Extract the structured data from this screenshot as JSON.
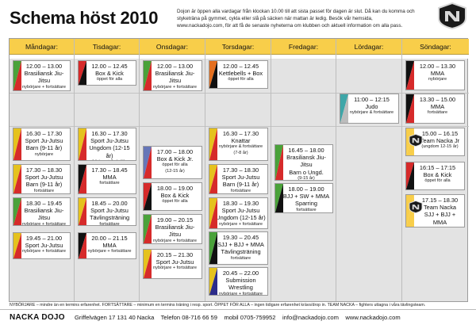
{
  "title": "Schema höst 2010",
  "intro": "Dojon är öppen alla vardagar från klockan 10.00 till att sista passet för dagen är slut. Då kan du komma och styketräna på gymmet, cykla eller slå på säcken när mattan är ledig. Besök vår hemsida, www.nackadojo.com, för att få de senaste nyheterna om klubben och aktuell information om alla pass.",
  "logo": {
    "name": "nacka-dojo-logo",
    "colors": {
      "dark": "#1a1a1a",
      "light": "#d8d8d8"
    }
  },
  "colors": {
    "header": "#f8ce4a",
    "bjj": "#4aa23a",
    "boxing": "#d62a2a",
    "kettlebells": "#e46f1f",
    "judo": "#3fa6a8",
    "juniors": "#6676b8",
    "ju-jutsu": "#e5c21e",
    "mma": "#111111",
    "open-mat": "#bcbcbc",
    "wrestling": "#2c2c8a"
  },
  "days": [
    {
      "name": "Måndagar:",
      "sessions": [
        {
          "time": "12.00 – 13.00",
          "lines": [
            "Brasiliansk Jiu-Jitsu"
          ],
          "notes": [
            "nybörjare + fortsättare"
          ],
          "colors": [
            "#4aa23a",
            "#d62a2a"
          ]
        },
        {
          "time": "16.30 – 17.30",
          "lines": [
            "Sport Ju-Jutsu",
            "Barn (9-11 år)"
          ],
          "notes": [
            "nybörjare"
          ],
          "colors": [
            "#e5c21e",
            "#d62a2a"
          ]
        },
        {
          "time": "17.30 – 18.30",
          "lines": [
            "Sport Ju-Jutsu",
            "Barn (9-11 år)"
          ],
          "notes": [
            "fortsättare"
          ],
          "colors": [
            "#e5c21e",
            "#d62a2a"
          ]
        },
        {
          "time": "18.30 – 19.45",
          "lines": [
            "Brasiliansk Jiu-Jitsu"
          ],
          "notes": [
            "nybörjare + fortsättare"
          ],
          "colors": [
            "#4aa23a",
            "#d62a2a"
          ]
        },
        {
          "time": "19.45 – 21.00",
          "lines": [
            "Sport Ju-Jutsu"
          ],
          "notes": [
            "nybörjare + fortsättare"
          ],
          "colors": [
            "#e5c21e",
            "#d62a2a"
          ]
        }
      ]
    },
    {
      "name": "Tisdagar:",
      "sessions": [
        {
          "time": "12.00 – 12.45",
          "lines": [
            "Box & Kick"
          ],
          "notes": [
            "öppet för alla"
          ],
          "colors": [
            "#d62a2a",
            "#111111"
          ]
        },
        {
          "time": "16.30 – 17.30",
          "lines": [
            "Sport Ju-Jutsu",
            "Ungdom (12-15 år)"
          ],
          "notes": [
            "nybörjare + fortsättare"
          ],
          "colors": [
            "#e5c21e",
            "#d62a2a"
          ]
        },
        {
          "time": "17.30 – 18.45",
          "lines": [
            "MMA"
          ],
          "notes": [
            "fortsättare"
          ],
          "colors": [
            "#111111",
            "#d62a2a"
          ]
        },
        {
          "time": "18.45 – 20.00",
          "lines": [
            "Sport Ju-Jutsu",
            "Tävlingsträning"
          ],
          "notes": [
            "fortsättare"
          ],
          "colors": [
            "#e5c21e",
            "#d62a2a"
          ]
        },
        {
          "time": "20.00 – 21.15",
          "lines": [
            "MMA"
          ],
          "notes": [
            "nybörjare + fortsättare"
          ],
          "colors": [
            "#111111",
            "#d62a2a"
          ]
        }
      ]
    },
    {
      "name": "Onsdagar:",
      "sessions": [
        {
          "time": "12.00 – 13.00",
          "lines": [
            "Brasiliansk Jiu-Jitsu"
          ],
          "notes": [
            "nybörjare + fortsättare"
          ],
          "colors": [
            "#4aa23a",
            "#d62a2a"
          ]
        },
        {
          "time": "17.00 – 18.00",
          "lines": [
            "Box & Kick Jr."
          ],
          "notes": [
            "öppet för alla",
            "(12-15 år)"
          ],
          "colors": [
            "#6676b8",
            "#d62a2a"
          ]
        },
        {
          "time": "18.00 – 19.00",
          "lines": [
            "Box & Kick"
          ],
          "notes": [
            "öppet för alla"
          ],
          "colors": [
            "#d62a2a",
            "#111111"
          ]
        },
        {
          "time": "19.00 – 20.15",
          "lines": [
            "Brasiliansk Jiu-Jitsu"
          ],
          "notes": [
            "nybörjare + fortsättare"
          ],
          "colors": [
            "#4aa23a",
            "#d62a2a"
          ]
        },
        {
          "time": "20.15 – 21.30",
          "lines": [
            "Sport Ju-Jutsu"
          ],
          "notes": [
            "nybörjare + fortsättare"
          ],
          "colors": [
            "#e5c21e",
            "#d62a2a"
          ]
        }
      ]
    },
    {
      "name": "Torsdagar:",
      "sessions": [
        {
          "time": "12.00 – 12.45",
          "lines": [
            "Kettlebells + Box"
          ],
          "notes": [
            "öppet för alla"
          ],
          "colors": [
            "#e46f1f",
            "#111111"
          ]
        },
        {
          "time": "16.30 – 17.30",
          "lines": [
            "Knattar"
          ],
          "notes": [
            "nybörjare & fortsättare",
            "(7-8 år)"
          ],
          "colors": [
            "#e5c21e",
            "#d62a2a"
          ]
        },
        {
          "time": "17.30 – 18.30",
          "lines": [
            "Sport Ju-Jutsu",
            "Barn (9-11 år)"
          ],
          "notes": [
            "fortsättare"
          ],
          "colors": [
            "#e5c21e",
            "#d62a2a"
          ]
        },
        {
          "time": "18.30 – 19.30",
          "lines": [
            "Sport Ju-Jutsu",
            "Ungdom (12-15 år)"
          ],
          "notes": [
            "nybörjare + fortsättare"
          ],
          "colors": [
            "#e5c21e",
            "#d62a2a"
          ]
        },
        {
          "time": "19.30 – 20.45",
          "lines": [
            "SJJ + BJJ + MMA",
            "Tävlingsträning"
          ],
          "notes": [
            "fortsättare"
          ],
          "colors": [
            "#4aa23a",
            "#111111"
          ]
        },
        {
          "time": "20.45 – 22.00",
          "lines": [
            "Submission Wrestling"
          ],
          "notes": [
            "nybörjare + fortsättare"
          ],
          "colors": [
            "#e5c21e",
            "#2c2c8a"
          ]
        }
      ]
    },
    {
      "name": "Fredagar:",
      "sessions": [
        {
          "time": "16.45 – 18.00",
          "lines": [
            "Brasiliansk Jiu-Jitsu",
            "Barn o Ungd."
          ],
          "notes": [
            "(9-15 år)",
            "nybörjare + fortsättare"
          ],
          "colors": [
            "#4aa23a",
            "#d62a2a"
          ]
        },
        {
          "time": "18.00 – 19.00",
          "lines": [
            "BJJ + SW + MMA",
            "Sparring"
          ],
          "notes": [
            "fortsättare"
          ],
          "colors": [
            "#4aa23a",
            "#111111"
          ]
        }
      ]
    },
    {
      "name": "Lördagar:",
      "sessions": [
        {
          "time": "11:00 – 12:15",
          "lines": [
            "Judo"
          ],
          "notes": [
            "nybörjare & fortsättare"
          ],
          "colors": [
            "#3fa6a8",
            "#bcbcbc"
          ]
        }
      ]
    },
    {
      "name": "Söndagar:",
      "sessions": [
        {
          "time": "12.00 – 13.30",
          "lines": [
            "MMA"
          ],
          "notes": [
            "nybörjare"
          ],
          "colors": [
            "#111111",
            "#d62a2a"
          ]
        },
        {
          "time": "13.30 – 15.00",
          "lines": [
            "MMA"
          ],
          "notes": [
            "fortsättare"
          ],
          "colors": [
            "#111111",
            "#d62a2a"
          ]
        },
        {
          "time": "15.00 – 16.15",
          "lines": [
            "Team Nacka Jr"
          ],
          "notes": [
            "(ungdom 12-15 år)"
          ],
          "colors": [
            "#f8ce4a",
            "#f8ce4a"
          ],
          "team": true
        },
        {
          "time": "16:15 – 17:15",
          "lines": [
            "Box & Kick"
          ],
          "notes": [
            "öppet för alla"
          ],
          "colors": [
            "#d62a2a",
            "#111111"
          ]
        },
        {
          "time": "17.15 – 18.30",
          "lines": [
            "Team Nacka",
            "SJJ + BJJ + MMA"
          ],
          "notes": [],
          "colors": [
            "#f8ce4a",
            "#f8ce4a"
          ],
          "team": true
        }
      ]
    }
  ],
  "footnote": "NYBÖRJARE – mindre än en termins erfarenhet.   FORTSÄTTARE – minimum en termins träning i resp. sport.   ÖPPET FÖR ALLA – ingen tidigare erfarenhet krävs/drop in.  TEAM NACKA – fighters uttagna i våra tävlingsteam.",
  "footer": {
    "brand": "NACKA DOJO",
    "address": "Griffelvägen 17   131 40 Nacka",
    "phone": "Telefon 08-716 66 59",
    "mobile": "mobil  0705-759952",
    "email": "info@nackadojo.com",
    "website": "www.nackadojo.com"
  }
}
